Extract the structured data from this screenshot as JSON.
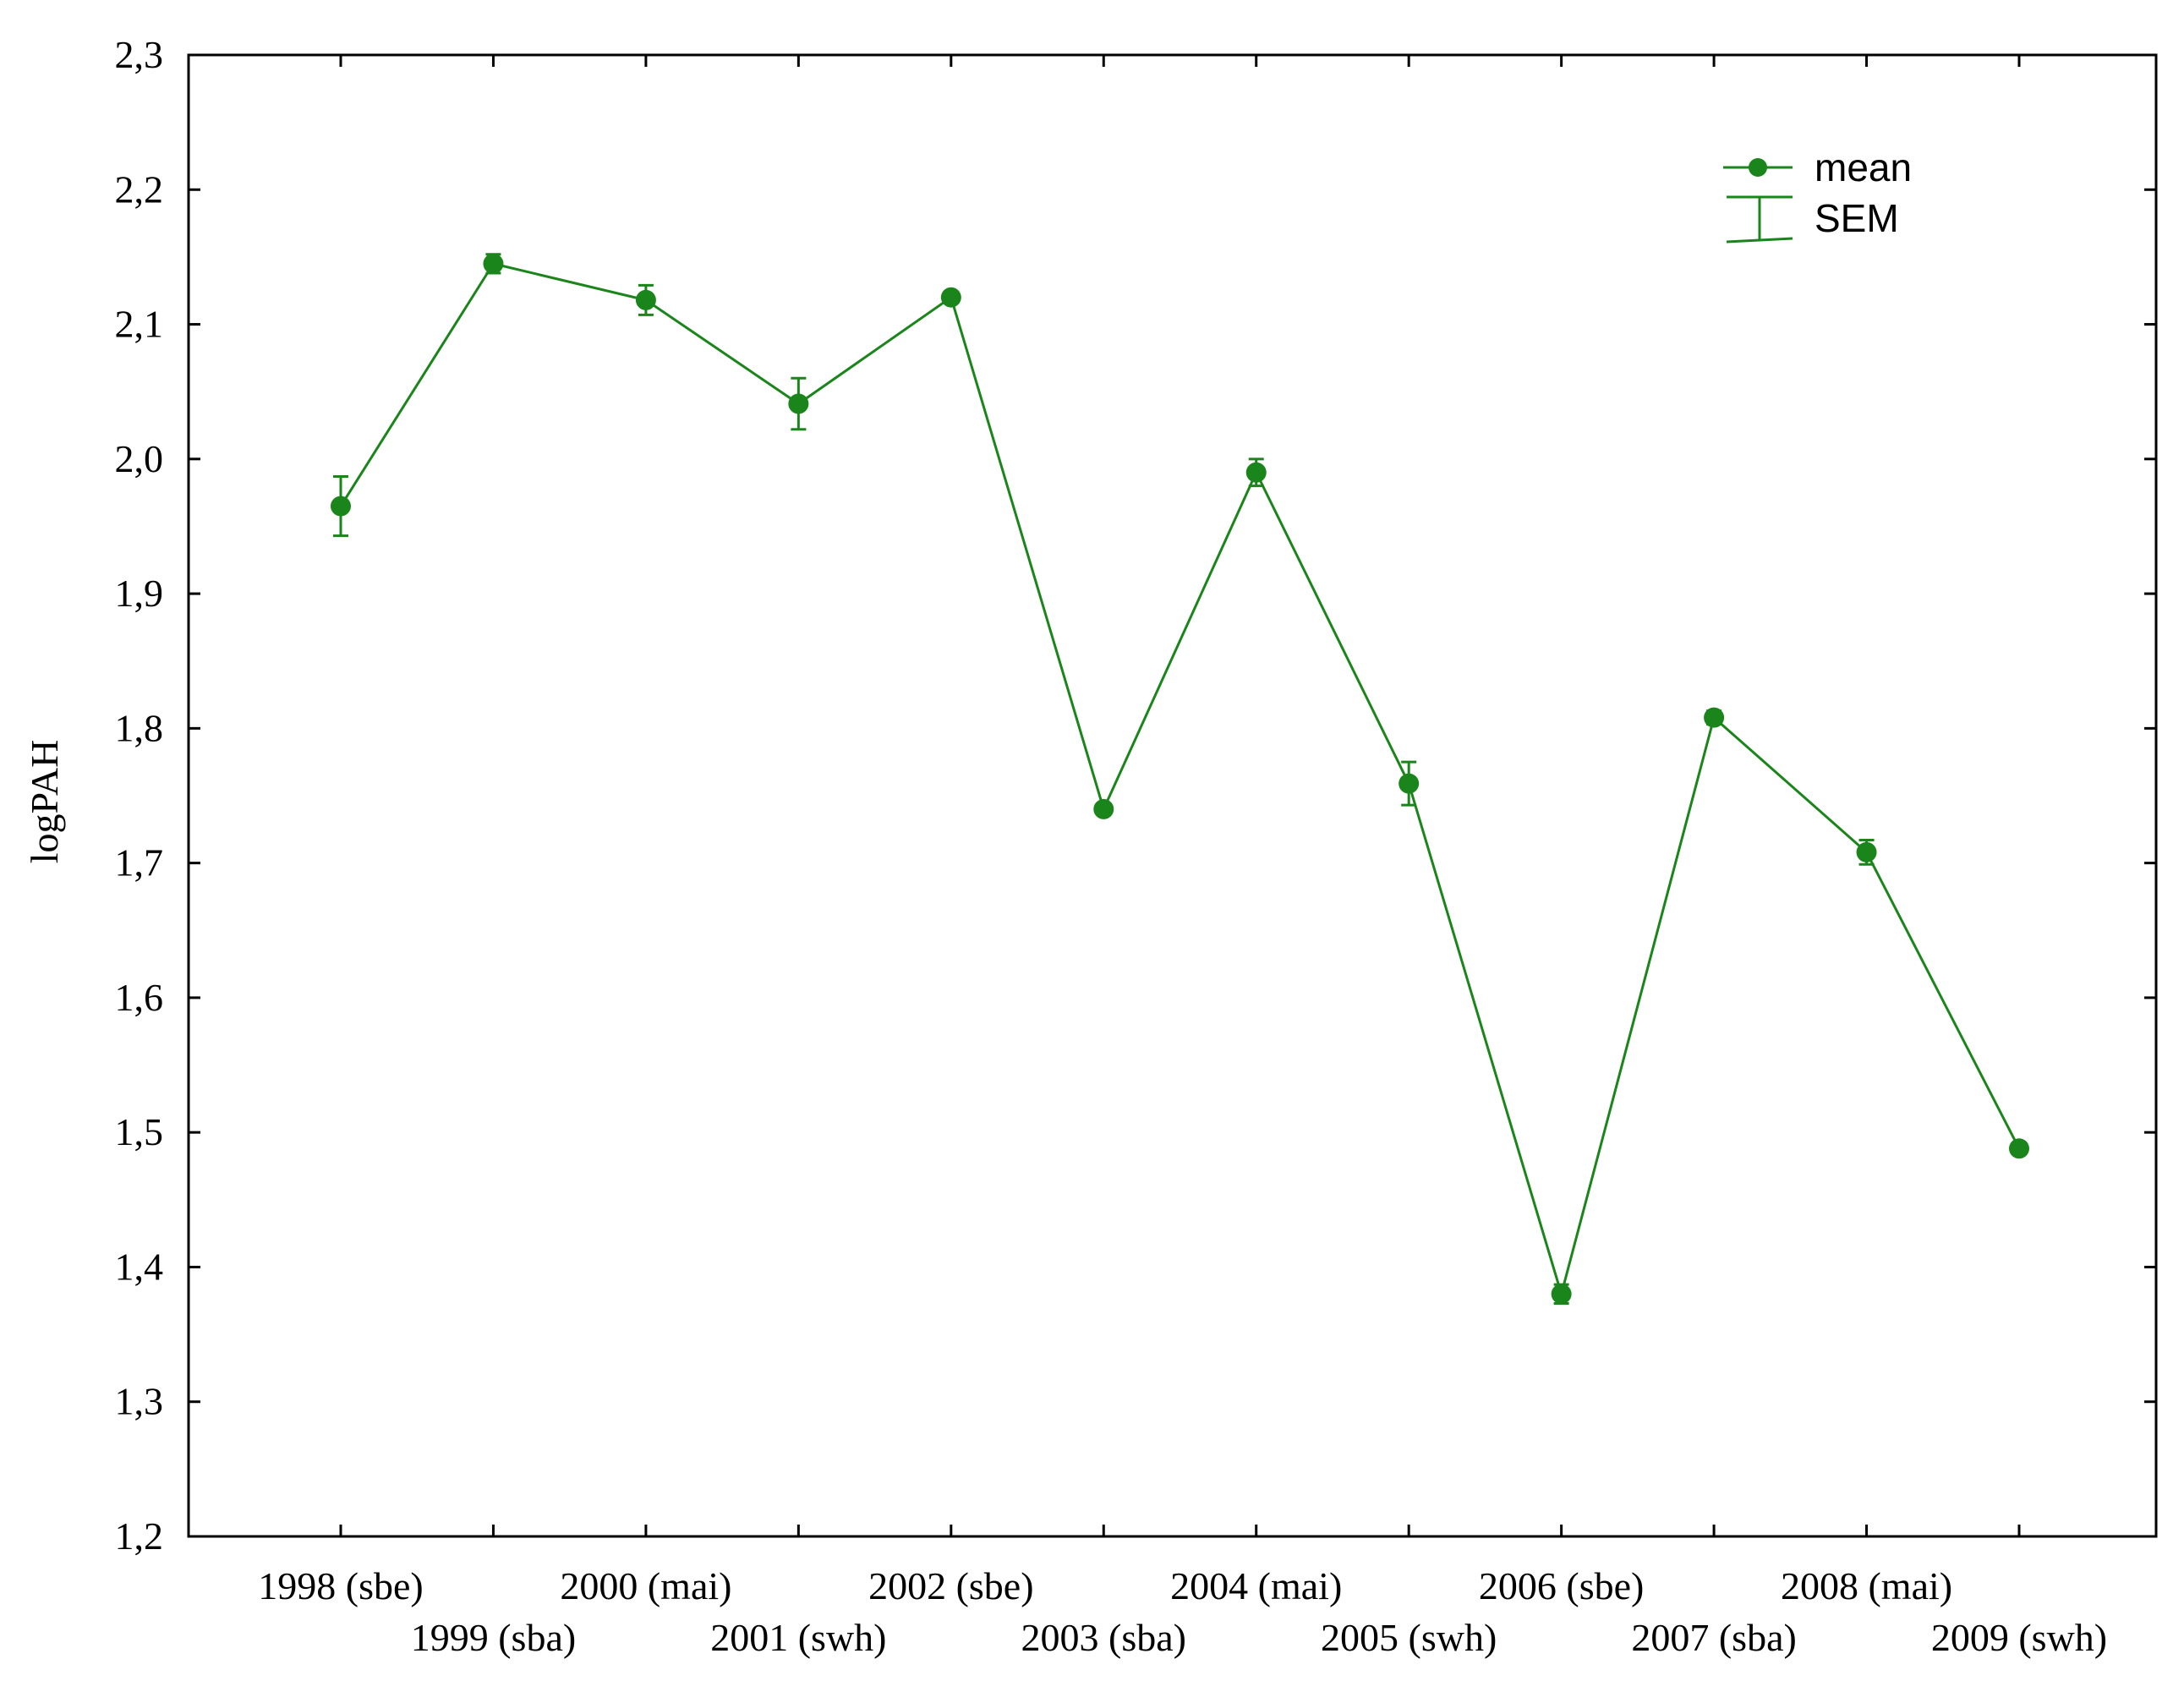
{
  "chart_data": {
    "type": "line",
    "title": "",
    "xlabel": "",
    "ylabel": "logPAH",
    "ylim": [
      1.2,
      2.3
    ],
    "yticks": [
      "1,2",
      "1,3",
      "1,4",
      "1,5",
      "1,6",
      "1,7",
      "1,8",
      "1,9",
      "2,0",
      "2,1",
      "2,2",
      "2,3"
    ],
    "ytick_values": [
      1.2,
      1.3,
      1.4,
      1.5,
      1.6,
      1.7,
      1.8,
      1.9,
      2.0,
      2.1,
      2.2,
      2.3
    ],
    "categories": [
      "1998 (sbe)",
      "1999 (sba)",
      "2000 (mai)",
      "2001 (swh)",
      "2002 (sbe)",
      "2003 (sba)",
      "2004 (mai)",
      "2005 (swh)",
      "2006 (sbe)",
      "2007 (sba)",
      "2008 (mai)",
      "2009 (swh)"
    ],
    "series": [
      {
        "name": "mean",
        "values": [
          1.965,
          2.145,
          2.118,
          2.041,
          2.12,
          1.74,
          1.99,
          1.759,
          1.38,
          1.808,
          1.708,
          1.488
        ],
        "sem": [
          0.022,
          0.007,
          0.011,
          0.019,
          0.004,
          0.004,
          0.01,
          0.016,
          0.007,
          0.005,
          0.009,
          0.003
        ]
      }
    ],
    "legend": {
      "position": "top-right",
      "entries": [
        "mean",
        "SEM"
      ]
    },
    "grid": false,
    "color": "#1a851a"
  }
}
